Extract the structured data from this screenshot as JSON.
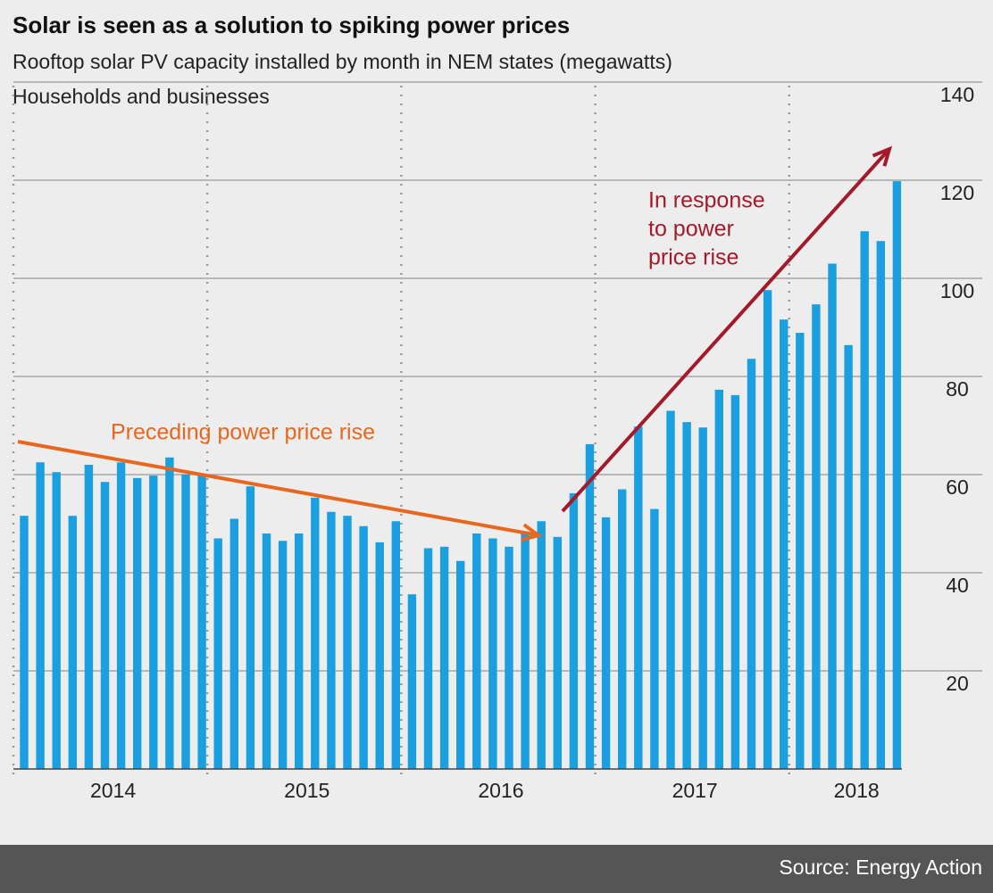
{
  "chart_data": {
    "type": "bar",
    "title": "Solar is seen as a solution to spiking power prices",
    "subtitle": "Rooftop solar PV capacity installed by month in NEM states (megawatts)",
    "series_label": "Households and businesses",
    "categories": [
      null,
      null,
      null,
      null,
      null,
      null,
      "2014",
      null,
      null,
      null,
      null,
      null,
      null,
      null,
      null,
      null,
      null,
      null,
      "2015",
      null,
      null,
      null,
      null,
      null,
      null,
      null,
      null,
      null,
      null,
      null,
      "2016",
      null,
      null,
      null,
      null,
      null,
      null,
      null,
      null,
      null,
      null,
      null,
      "2017",
      null,
      null,
      null,
      null,
      null,
      null,
      null,
      null,
      null,
      "2018",
      null,
      null
    ],
    "values": [
      51.6,
      62.5,
      60.5,
      51.6,
      62,
      58.5,
      62.5,
      59.3,
      59.8,
      63.5,
      60,
      60,
      47,
      51,
      57.6,
      48,
      46.5,
      48,
      55.3,
      52.4,
      51.6,
      49.5,
      46.2,
      50.5,
      35.6,
      45,
      45.3,
      42.4,
      48,
      47,
      45.3,
      48.4,
      50.5,
      47.3,
      56.2,
      66.2,
      51.3,
      57,
      69.8,
      53,
      73,
      70.7,
      69.6,
      77.3,
      76.2,
      83.6,
      97.6,
      91.6,
      88.9,
      94.7,
      103,
      86.4,
      109.6,
      107.6,
      119.8
    ],
    "color": "#1a9fe0",
    "ylim": [
      0,
      140
    ],
    "yticks": [
      20,
      40,
      60,
      80,
      100,
      120,
      140
    ],
    "grid": true,
    "annotations": [
      {
        "text": [
          "Preceding power price rise"
        ],
        "color": "#e8671e"
      },
      {
        "text": [
          "In response",
          "to power",
          "price rise"
        ],
        "color": "#a31a2a"
      }
    ],
    "source": "Source: Energy Action"
  }
}
